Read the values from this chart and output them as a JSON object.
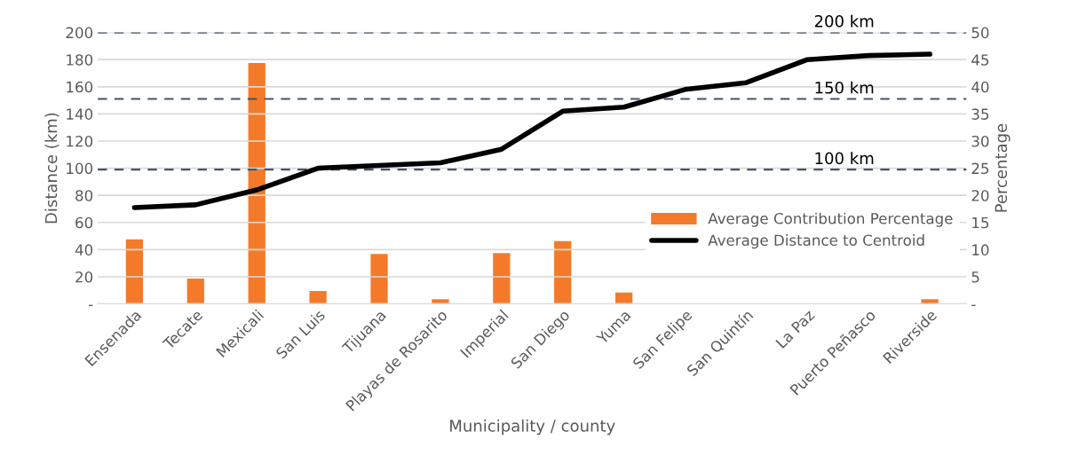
{
  "chart_data": {
    "type": "bar",
    "categories": [
      "Ensenada",
      "Tecate",
      "Mexicali",
      "San Luis",
      "Tijuana",
      "Playas de Rosarito",
      "Imperial",
      "San Diego",
      "Yuma",
      "San Felipe",
      "San Quintín",
      "La Paz",
      "Puerto Peñasco",
      "Riverside"
    ],
    "series": [
      {
        "name": "Average Contribution Percentage",
        "axis": "y2",
        "color": "#f47a2a",
        "values": [
          12,
          4.8,
          44.5,
          2.5,
          9.3,
          1,
          9.5,
          11.7,
          2.2,
          null,
          null,
          null,
          null,
          1
        ]
      },
      {
        "name": "Average Distance to Centroid",
        "type": "line",
        "color": "#000000",
        "values": [
          71,
          73,
          84,
          100,
          102,
          104,
          114,
          142,
          145,
          158,
          163,
          180,
          183,
          184
        ]
      }
    ],
    "xlabel": "Municipality / county",
    "ylabel": "Distance (km)",
    "y2label": "Percentage",
    "ylim": [
      0,
      200
    ],
    "yticks": [
      {
        "value": 0,
        "label": "-"
      },
      20,
      40,
      60,
      80,
      100,
      120,
      140,
      160,
      180,
      200
    ],
    "y2lim": [
      0,
      50
    ],
    "y2ticks": [
      {
        "value": 0,
        "label": "-"
      },
      5,
      10,
      15,
      20,
      25,
      30,
      35,
      40,
      45,
      50
    ],
    "ref_lines": [
      {
        "axis": "y",
        "value": 200,
        "label": "200 km",
        "color": "#44546a",
        "line_style": "dashed"
      },
      {
        "axis": "y",
        "value": 151,
        "label": "150 km",
        "color": "#44546a",
        "line_style": "dashed"
      },
      {
        "axis": "y",
        "value": 99,
        "label": "100 km",
        "color": "#44546a",
        "line_style": "dashed"
      }
    ],
    "grid": "y",
    "legend": "right",
    "marker": "none",
    "line_style": "solid"
  }
}
